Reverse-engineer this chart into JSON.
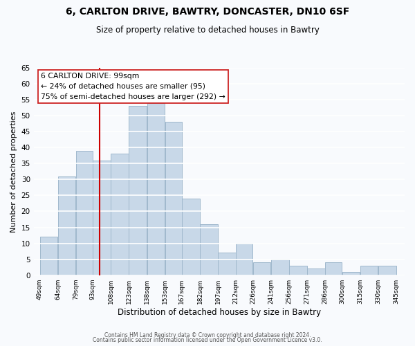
{
  "title1": "6, CARLTON DRIVE, BAWTRY, DONCASTER, DN10 6SF",
  "title2": "Size of property relative to detached houses in Bawtry",
  "xlabel": "Distribution of detached houses by size in Bawtry",
  "ylabel": "Number of detached properties",
  "bar_left_edges": [
    49,
    64,
    79,
    93,
    108,
    123,
    138,
    153,
    167,
    182,
    197,
    212,
    226,
    241,
    256,
    271,
    286,
    300,
    315,
    330
  ],
  "bar_widths": [
    15,
    15,
    14,
    15,
    15,
    15,
    15,
    14,
    15,
    15,
    15,
    14,
    15,
    15,
    15,
    15,
    14,
    15,
    15,
    15
  ],
  "bar_heights": [
    12,
    31,
    39,
    36,
    38,
    53,
    54,
    48,
    24,
    16,
    7,
    10,
    4,
    5,
    3,
    2,
    4,
    1,
    3,
    3
  ],
  "bar_color": "#c8d8e8",
  "bar_edgecolor": "#a0b8cc",
  "tick_labels": [
    "49sqm",
    "64sqm",
    "79sqm",
    "93sqm",
    "108sqm",
    "123sqm",
    "138sqm",
    "153sqm",
    "167sqm",
    "182sqm",
    "197sqm",
    "212sqm",
    "226sqm",
    "241sqm",
    "256sqm",
    "271sqm",
    "286sqm",
    "300sqm",
    "315sqm",
    "330sqm",
    "345sqm"
  ],
  "tick_positions": [
    49,
    64,
    79,
    93,
    108,
    123,
    138,
    153,
    167,
    182,
    197,
    212,
    226,
    241,
    256,
    271,
    286,
    300,
    315,
    330,
    345
  ],
  "ylim": [
    0,
    65
  ],
  "yticks": [
    0,
    5,
    10,
    15,
    20,
    25,
    30,
    35,
    40,
    45,
    50,
    55,
    60,
    65
  ],
  "vline_x": 99,
  "vline_color": "#cc0000",
  "annotation_title": "6 CARLTON DRIVE: 99sqm",
  "annotation_line1": "← 24% of detached houses are smaller (95)",
  "annotation_line2": "75% of semi-detached houses are larger (292) →",
  "footer1": "Contains HM Land Registry data © Crown copyright and database right 2024.",
  "footer2": "Contains public sector information licensed under the Open Government Licence v3.0.",
  "bg_color": "#f8fafd",
  "plot_bg_color": "#f8fafd",
  "grid_color": "#ffffff"
}
